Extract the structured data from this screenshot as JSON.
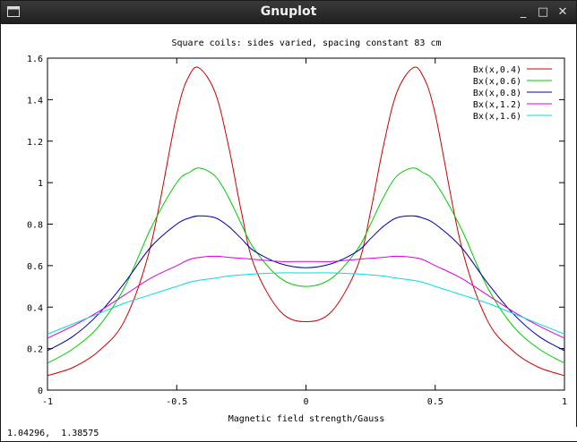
{
  "window": {
    "title": "Gnuplot",
    "buttons": {
      "minimize": "_",
      "maximize": "□",
      "close": "✕"
    }
  },
  "status": {
    "cursor_readout": "1.04296,  1.38575"
  },
  "chart_data": {
    "type": "line",
    "title": "Square coils: sides varied, spacing constant 83 cm",
    "xlabel": "Magnetic field strength/Gauss",
    "ylabel": "",
    "xlim": [
      -1,
      1
    ],
    "ylim": [
      0,
      1.6
    ],
    "xticks": [
      -1,
      -0.5,
      0,
      0.5,
      1
    ],
    "xtick_labels": [
      "-1",
      "-0.5",
      "0",
      "0.5",
      "1"
    ],
    "yticks": [
      0,
      0.2,
      0.4,
      0.6,
      0.8,
      1,
      1.2,
      1.4,
      1.6
    ],
    "ytick_labels": [
      "0",
      "0.2",
      "0.4",
      "0.6",
      "0.8",
      "1",
      "1.2",
      "1.4",
      "1.6"
    ],
    "grid": false,
    "legend_position": "top-right",
    "x": [
      -1,
      -0.9,
      -0.8,
      -0.7,
      -0.6,
      -0.5,
      -0.45,
      -0.41,
      -0.35,
      -0.3,
      -0.25,
      -0.2,
      -0.1,
      0,
      0.1,
      0.2,
      0.25,
      0.3,
      0.35,
      0.41,
      0.45,
      0.5,
      0.6,
      0.7,
      0.8,
      0.9,
      1
    ],
    "series": [
      {
        "name": "Bx(x,0.4)",
        "color": "#cc0000",
        "values": [
          0.07,
          0.11,
          0.19,
          0.34,
          0.7,
          1.33,
          1.52,
          1.55,
          1.43,
          1.18,
          0.86,
          0.6,
          0.38,
          0.33,
          0.38,
          0.6,
          0.86,
          1.18,
          1.43,
          1.55,
          1.52,
          1.33,
          0.7,
          0.34,
          0.19,
          0.11,
          0.07
        ]
      },
      {
        "name": "Bx(x,0.6)",
        "color": "#00cc00",
        "values": [
          0.13,
          0.2,
          0.31,
          0.5,
          0.78,
          1.0,
          1.05,
          1.07,
          1.03,
          0.93,
          0.8,
          0.68,
          0.54,
          0.5,
          0.54,
          0.68,
          0.8,
          0.93,
          1.03,
          1.07,
          1.05,
          1.0,
          0.78,
          0.5,
          0.31,
          0.2,
          0.13
        ]
      },
      {
        "name": "Bx(x,0.8)",
        "color": "#0000aa",
        "values": [
          0.19,
          0.26,
          0.37,
          0.52,
          0.69,
          0.8,
          0.83,
          0.84,
          0.83,
          0.79,
          0.73,
          0.67,
          0.61,
          0.59,
          0.61,
          0.67,
          0.73,
          0.79,
          0.83,
          0.84,
          0.83,
          0.8,
          0.69,
          0.52,
          0.37,
          0.26,
          0.19
        ]
      },
      {
        "name": "Bx(x,1.2)",
        "color": "#dd00dd",
        "values": [
          0.25,
          0.31,
          0.38,
          0.46,
          0.54,
          0.6,
          0.63,
          0.64,
          0.645,
          0.64,
          0.635,
          0.63,
          0.62,
          0.62,
          0.62,
          0.63,
          0.635,
          0.64,
          0.645,
          0.64,
          0.63,
          0.6,
          0.54,
          0.46,
          0.38,
          0.31,
          0.25
        ]
      },
      {
        "name": "Bx(x,1.6)",
        "color": "#00dddd",
        "values": [
          0.27,
          0.32,
          0.37,
          0.42,
          0.46,
          0.5,
          0.52,
          0.53,
          0.54,
          0.55,
          0.555,
          0.56,
          0.565,
          0.565,
          0.565,
          0.56,
          0.555,
          0.55,
          0.54,
          0.53,
          0.52,
          0.5,
          0.46,
          0.42,
          0.37,
          0.32,
          0.27
        ]
      }
    ]
  }
}
